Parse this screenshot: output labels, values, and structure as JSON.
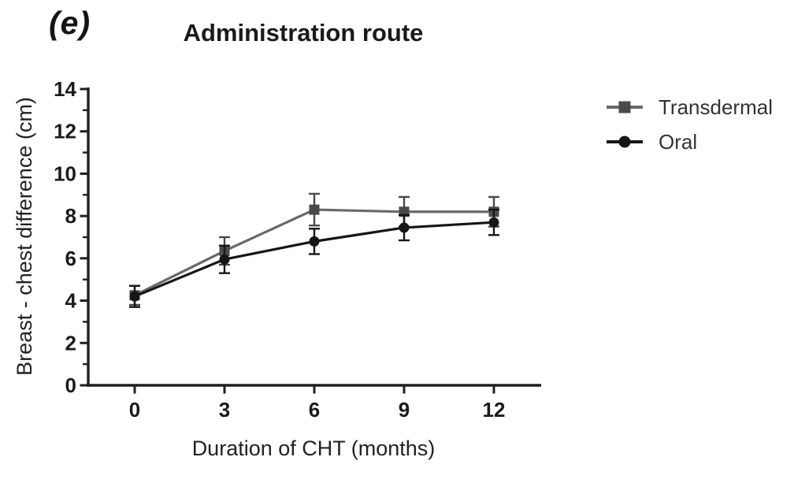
{
  "panel_label": "(e)",
  "title": "Administration route",
  "colors": {
    "axis": "#1f1f1f",
    "text": "#1b1b1b"
  },
  "chart_data": {
    "type": "line",
    "title": "Administration route",
    "xlabel": "Duration of CHT (months)",
    "ylabel": "Breast - chest difference (cm)",
    "x": [
      0,
      3,
      6,
      9,
      12
    ],
    "x_ticks": [
      0,
      3,
      6,
      9,
      12
    ],
    "y_ticks_major": [
      0,
      2,
      4,
      6,
      8,
      10,
      12,
      14
    ],
    "y_ticks_minor": [
      1,
      3,
      5,
      7,
      9,
      11,
      13
    ],
    "xlim": [
      -1.6,
      13.6
    ],
    "ylim": [
      0,
      14
    ],
    "grid": false,
    "error_bars": true,
    "legend_position": "right",
    "series": [
      {
        "name": "Transdermal",
        "marker": "square",
        "line_color": "#696969",
        "marker_color": "#4a4a4a",
        "values": [
          4.25,
          6.35,
          8.3,
          8.2,
          8.2
        ],
        "errors": [
          0.45,
          0.65,
          0.75,
          0.7,
          0.7
        ]
      },
      {
        "name": "Oral",
        "marker": "circle",
        "line_color": "#161616",
        "marker_color": "#161616",
        "values": [
          4.2,
          5.95,
          6.8,
          7.45,
          7.7
        ],
        "errors": [
          0.5,
          0.65,
          0.6,
          0.6,
          0.6
        ]
      }
    ]
  }
}
